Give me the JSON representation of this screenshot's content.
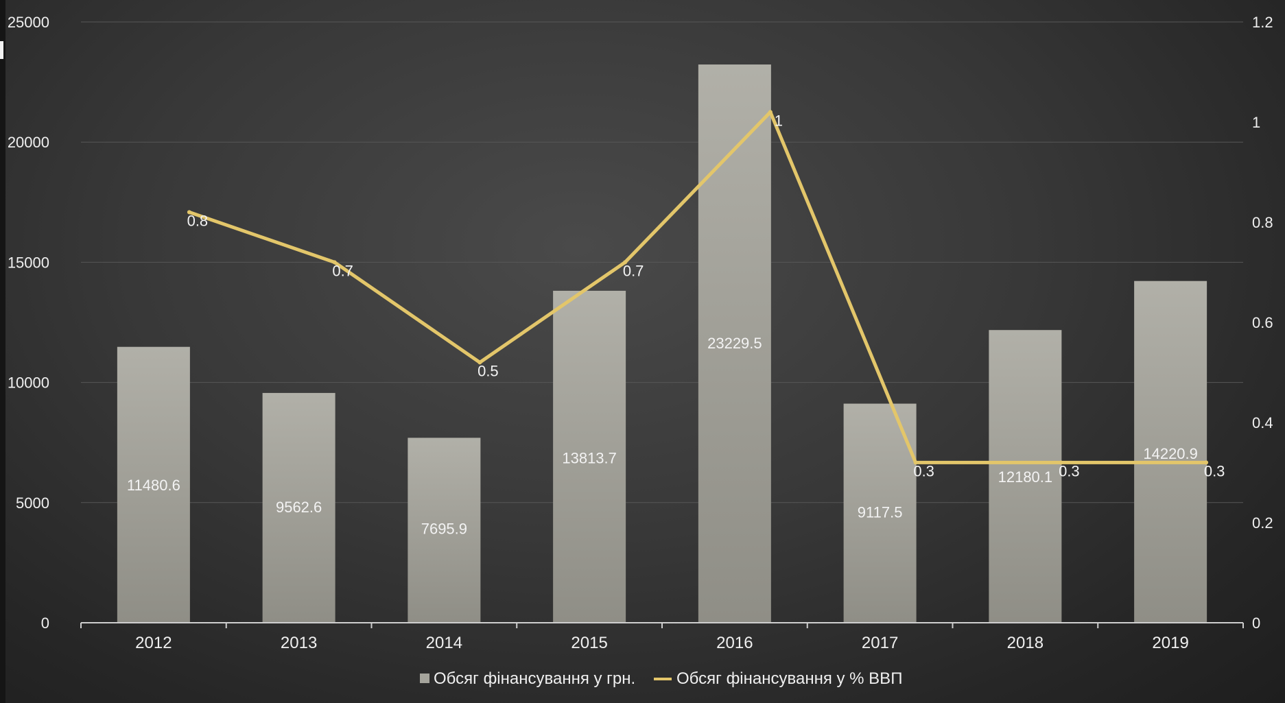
{
  "chart_data": {
    "type": "bar",
    "categories": [
      "2012",
      "2013",
      "2014",
      "2015",
      "2016",
      "2017",
      "2018",
      "2019"
    ],
    "series": [
      {
        "name": "Обсяг фінансування у грн.",
        "type": "bar",
        "axis": "left",
        "values": [
          11480.6,
          9562.6,
          7695.9,
          13813.7,
          23229.5,
          9117.5,
          12180.1,
          14220.9
        ],
        "labels": [
          "11480.6",
          "9562.6",
          "7695.9",
          "13813.7",
          "23229.5",
          "9117.5",
          "12180.1",
          "14220.9"
        ],
        "color": "#a5a49c"
      },
      {
        "name": "Обсяг фінансування у % ВВП",
        "type": "line",
        "axis": "right",
        "values": [
          0.82,
          0.72,
          0.52,
          0.72,
          1.02,
          0.32,
          0.32,
          0.32
        ],
        "labels": [
          "0.8",
          "0.7",
          "0.5",
          "0.7",
          "1",
          "0.3",
          "0.3",
          "0.3"
        ],
        "color": "#e3c66a"
      }
    ],
    "y_left": {
      "min": 0,
      "max": 25000,
      "ticks": [
        "0",
        "5000",
        "10000",
        "15000",
        "20000",
        "25000"
      ]
    },
    "y_right": {
      "min": 0,
      "max": 1.2,
      "ticks": [
        "0",
        "0.2",
        "0.4",
        "0.6",
        "0.8",
        "1",
        "1.2"
      ]
    },
    "grid": true,
    "legend_position": "bottom"
  }
}
